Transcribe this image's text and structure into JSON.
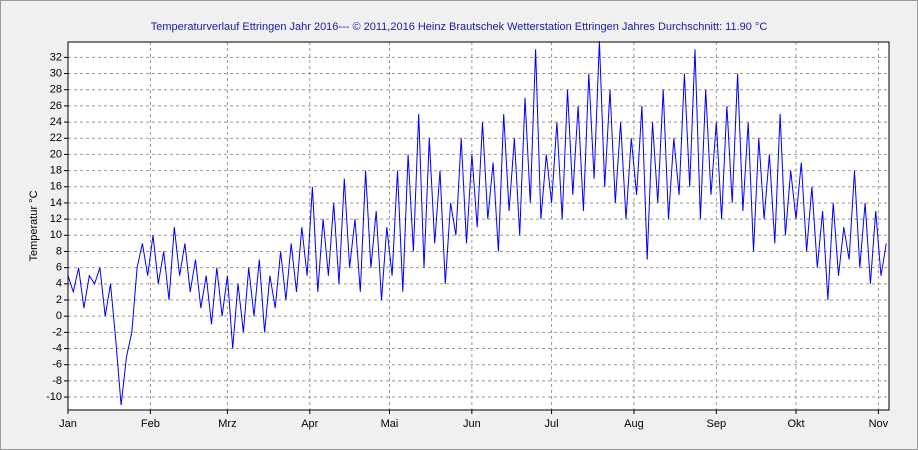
{
  "chart_data": {
    "type": "line",
    "title": "Temperaturverlauf Ettringen Jahr 2016--- © 2011,2016 Heinz Brautschek Wetterstation Ettringen Jahres Durchschnitt: 11.90 °C",
    "y_label": "Temperatur °C",
    "x": [
      0,
      2,
      4,
      6,
      8,
      10,
      12,
      14,
      16,
      18,
      20,
      22,
      24,
      26,
      28,
      30,
      32,
      34,
      36,
      38,
      40,
      42,
      44,
      46,
      48,
      50,
      52,
      54,
      56,
      58,
      60,
      62,
      64,
      66,
      68,
      70,
      72,
      74,
      76,
      78,
      80,
      82,
      84,
      86,
      88,
      90,
      92,
      94,
      96,
      98,
      100,
      102,
      104,
      106,
      108,
      110,
      112,
      114,
      116,
      118,
      120,
      122,
      124,
      126,
      128,
      130,
      132,
      134,
      136,
      138,
      140,
      142,
      144,
      146,
      148,
      150,
      152,
      154,
      156,
      158,
      160,
      162,
      164,
      166,
      168,
      170,
      172,
      174,
      176,
      178,
      180,
      182,
      184,
      186,
      188,
      190,
      192,
      194,
      196,
      198,
      200,
      202,
      204,
      206,
      208,
      210,
      212,
      214,
      216,
      218,
      220,
      222,
      224,
      226,
      228,
      230,
      232,
      234,
      236,
      238,
      240,
      242,
      244,
      246,
      248,
      250,
      252,
      254,
      256,
      258,
      260,
      262,
      264,
      266,
      268,
      270,
      272,
      274,
      276,
      278,
      280,
      282,
      284,
      286,
      288,
      290,
      292,
      294,
      296,
      298,
      300,
      302,
      304,
      306,
      308
    ],
    "series": [
      {
        "name": "Temperatur",
        "color": "#0000ff",
        "values": [
          5,
          3,
          6,
          1,
          5,
          4,
          6,
          0,
          4,
          -3,
          -11,
          -5,
          -2,
          6,
          9,
          5,
          10,
          4,
          8,
          2,
          11,
          5,
          9,
          3,
          7,
          1,
          5,
          -1,
          6,
          0,
          5,
          -4,
          4,
          -2,
          6,
          0,
          7,
          -2,
          5,
          1,
          8,
          2,
          9,
          3,
          11,
          5,
          16,
          3,
          12,
          5,
          14,
          4,
          17,
          6,
          12,
          3,
          18,
          6,
          13,
          2,
          11,
          5,
          18,
          3,
          20,
          8,
          25,
          6,
          22,
          9,
          18,
          4,
          14,
          10,
          22,
          9,
          20,
          11,
          24,
          12,
          19,
          8,
          25,
          13,
          22,
          10,
          27,
          14,
          33,
          12,
          20,
          14,
          24,
          12,
          28,
          15,
          26,
          13,
          30,
          17,
          34,
          16,
          28,
          14,
          24,
          12,
          22,
          15,
          26,
          7,
          24,
          14,
          28,
          12,
          22,
          15,
          30,
          16,
          33,
          12,
          28,
          15,
          24,
          12,
          26,
          14,
          30,
          13,
          24,
          8,
          22,
          12,
          20,
          9,
          25,
          10,
          18,
          12,
          19,
          8,
          16,
          6,
          13,
          2,
          14,
          5,
          11,
          7,
          18,
          6,
          14,
          4,
          13,
          5,
          9
        ]
      }
    ],
    "xlim": [
      0,
      309
    ],
    "xticks": [
      {
        "value": 0,
        "label": "Jan"
      },
      {
        "value": 31,
        "label": "Feb"
      },
      {
        "value": 60,
        "label": "Mrz"
      },
      {
        "value": 91,
        "label": "Apr"
      },
      {
        "value": 121,
        "label": "Mai"
      },
      {
        "value": 152,
        "label": "Jun"
      },
      {
        "value": 182,
        "label": "Jul"
      },
      {
        "value": 213,
        "label": "Aug"
      },
      {
        "value": 244,
        "label": "Sep"
      },
      {
        "value": 274,
        "label": "Okt"
      },
      {
        "value": 305,
        "label": "Nov"
      }
    ],
    "ylim": [
      -11.6,
      33.9
    ],
    "yticks": [
      -10,
      -8,
      -6,
      -4,
      -2,
      0,
      2,
      4,
      6,
      8,
      10,
      12,
      14,
      16,
      18,
      20,
      22,
      24,
      26,
      28,
      30,
      32
    ],
    "grid": true
  }
}
